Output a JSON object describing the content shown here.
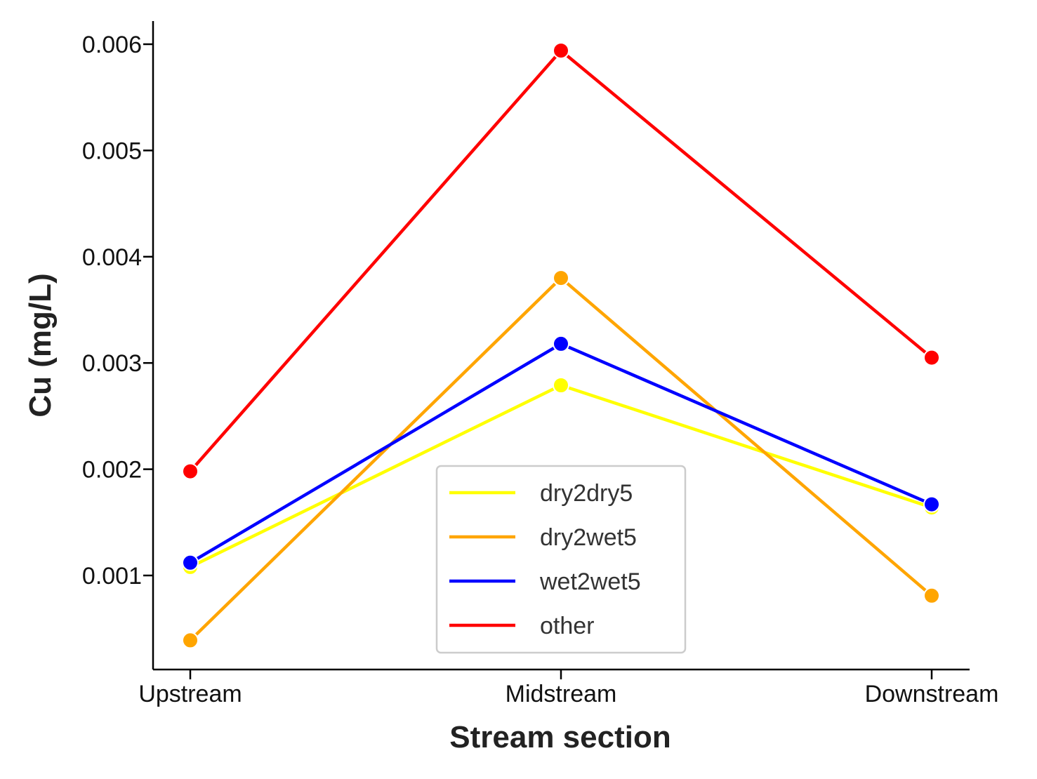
{
  "chart_data": {
    "type": "line",
    "categories": [
      "Upstream",
      "Midstream",
      "Downstream"
    ],
    "xlabel": "Stream section",
    "ylabel": "Cu (mg/L)",
    "ylim": [
      0.00012,
      0.00622
    ],
    "yticks": [
      "0.001",
      "0.002",
      "0.003",
      "0.004",
      "0.005",
      "0.006"
    ],
    "grid": false,
    "legend_position": "bottom-center",
    "series": [
      {
        "name": "dry2dry5",
        "color": "#ffff00",
        "values": [
          0.00108,
          0.00279,
          0.00164
        ]
      },
      {
        "name": "dry2wet5",
        "color": "#ffa500",
        "values": [
          0.00039,
          0.0038,
          0.00081
        ]
      },
      {
        "name": "wet2wet5",
        "color": "#0000ff",
        "values": [
          0.00112,
          0.00318,
          0.00167
        ]
      },
      {
        "name": "other",
        "color": "#ff0000",
        "values": [
          0.00198,
          0.00594,
          0.00305
        ]
      }
    ]
  }
}
